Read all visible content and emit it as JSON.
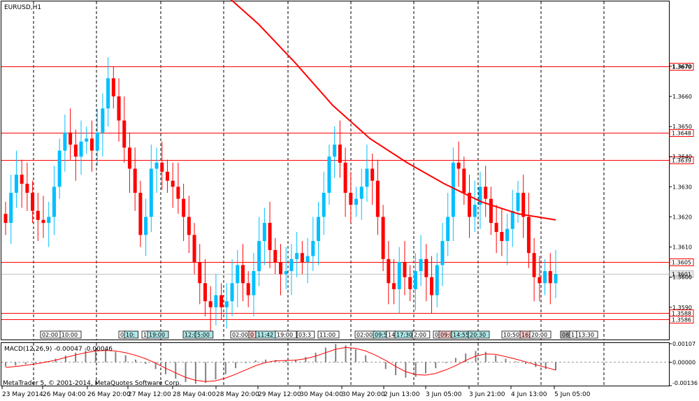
{
  "chart_data": [
    {
      "type": "candlestick",
      "title": "EURUSD,H1",
      "ylim": [
        1.3583,
        1.3692
      ],
      "y_ticks": [
        1.359,
        1.36,
        1.361,
        1.362,
        1.363,
        1.364,
        1.365,
        1.366,
        1.367
      ],
      "x_labels": [
        "23 May 2014",
        "26 May 04:00",
        "26 May 20:00",
        "27 May 12:00",
        "28 May 04:00",
        "28 May 20:00",
        "29 May 12:00",
        "30 May 04:00",
        "30 May 20:00",
        "2 Jun 13:00",
        "3 Jun 05:00",
        "3 Jun 21:00",
        "4 Jun 13:00",
        "5 Jun 05:00"
      ],
      "up_color": "#00bfff",
      "down_color": "#ff0000",
      "candles_close": [
        1.3618,
        1.3628,
        1.3634,
        1.3631,
        1.3628,
        1.3622,
        1.3619,
        1.3618,
        1.362,
        1.363,
        1.3642,
        1.3648,
        1.3644,
        1.364,
        1.3645,
        1.3646,
        1.3642,
        1.3648,
        1.3656,
        1.3666,
        1.366,
        1.3652,
        1.3643,
        1.3636,
        1.3628,
        1.3614,
        1.362,
        1.3636,
        1.3638,
        1.3635,
        1.3632,
        1.363,
        1.3626,
        1.362,
        1.3614,
        1.3605,
        1.3598,
        1.3592,
        1.359,
        1.3594,
        1.359,
        1.3592,
        1.3598,
        1.3604,
        1.3598,
        1.3594,
        1.3602,
        1.3612,
        1.3618,
        1.3609,
        1.3605,
        1.3601,
        1.3602,
        1.3606,
        1.3608,
        1.3605,
        1.3607,
        1.3612,
        1.362,
        1.3628,
        1.364,
        1.3644,
        1.3638,
        1.3628,
        1.3624,
        1.3626,
        1.363,
        1.3636,
        1.3632,
        1.362,
        1.3606,
        1.3598,
        1.3596,
        1.3605,
        1.36,
        1.3596,
        1.3602,
        1.3606,
        1.36,
        1.3594,
        1.3604,
        1.3612,
        1.362,
        1.3638,
        1.3636,
        1.3628,
        1.362,
        1.3624,
        1.363,
        1.3626,
        1.3618,
        1.3615,
        1.3612,
        1.3616,
        1.3622,
        1.3628,
        1.362,
        1.3608,
        1.36,
        1.3598,
        1.3602,
        1.3598,
        1.3601
      ],
      "series": [
        {
          "name": "",
          "color": "#ff0000",
          "x_start_index": 40,
          "values": [
            1.3695,
            1.3684,
            1.3671,
            1.3657,
            1.3646,
            1.3638,
            1.3631,
            1.3625,
            1.3621,
            1.3619
          ]
        }
      ],
      "horizontal_levels": [
        {
          "value": 1.367,
          "label": "1.3670",
          "color": "#ff0000"
        },
        {
          "value": 1.3648,
          "label": "1.3648",
          "color": "#ff0000"
        },
        {
          "value": 1.3639,
          "label": "1.3639",
          "color": "#ff0000"
        },
        {
          "value": 1.3605,
          "label": "1.3605",
          "color": "#ff0000"
        },
        {
          "value": 1.3588,
          "label": "1.3588",
          "color": "#ff0000"
        },
        {
          "value": 1.3586,
          "label": "1.3586",
          "color": "#ff0000"
        },
        {
          "value": 1.3601,
          "label": "1.3601",
          "color": "#c0c0c0"
        }
      ],
      "time_markers": [
        {
          "text": "02:00",
          "bg": "#ffffff"
        },
        {
          "text": "10:00",
          "bg": "#ffffff"
        },
        {
          "text": "0",
          "bg": "#ffffff"
        },
        {
          "text": "10:",
          "bg": "#aee8e8"
        },
        {
          "text": "1",
          "bg": "#ffffff"
        },
        {
          "text": "19:00",
          "bg": "#aee8e8"
        },
        {
          "text": "12:00",
          "bg": "#aee8e8"
        },
        {
          "text": "5:00",
          "bg": "#aee8e8"
        },
        {
          "text": "02:00",
          "bg": "#ffffff"
        },
        {
          "text": "0",
          "bg": "#ffc8c8"
        },
        {
          "text": "11:42",
          "bg": "#aee8e8"
        },
        {
          "text": "19:00",
          "bg": "#ffffff"
        },
        {
          "text": "03:3",
          "bg": "#ffffff"
        },
        {
          "text": "11:00",
          "bg": "#ffffff"
        },
        {
          "text": "02:00",
          "bg": "#ffffff"
        },
        {
          "text": "09:5",
          "bg": "#aee8e8"
        },
        {
          "text": "14",
          "bg": "#ffffff"
        },
        {
          "text": "17:30",
          "bg": "#aee8e8"
        },
        {
          "text": "2:00",
          "bg": "#ffffff"
        },
        {
          "text": "0",
          "bg": "#ffffff"
        },
        {
          "text": "09:0",
          "bg": "#ffc8c8"
        },
        {
          "text": "14:55",
          "bg": "#aee8e8"
        },
        {
          "text": "20:30",
          "bg": "#aee8e8"
        },
        {
          "text": "10:50",
          "bg": "#ffffff"
        },
        {
          "text": "16:",
          "bg": "#ffc8c8"
        },
        {
          "text": "20:00",
          "bg": "#ffffff"
        },
        {
          "text": "08",
          "bg": "#c0c0c0"
        },
        {
          "text": "1",
          "bg": "#ffffff"
        },
        {
          "text": "13:30",
          "bg": "#ffffff"
        }
      ]
    },
    {
      "type": "histogram",
      "title": "MACD(12,26,9) -0.00047 -0.00046",
      "y_ticks": [
        "0.00107",
        "0.00000",
        "-0.00136"
      ],
      "bar_color": "#808080",
      "signal_color": "#ff0000",
      "macd": [
        -0.00025,
        -0.0002,
        -0.00012,
        -5e-05,
        5e-05,
        0.0002,
        0.00038,
        0.00055,
        0.00068,
        0.00075,
        0.00072,
        0.0006,
        0.0004,
        0.00015,
        -0.0001,
        -0.0004,
        -0.0007,
        -0.00095,
        -0.00115,
        -0.00125,
        -0.0012,
        -0.001,
        -0.0007,
        -0.00035,
        -5e-05,
        0.0001,
        0.00015,
        0.00012,
        0.0001,
        0.00015,
        0.0003,
        0.00055,
        0.00085,
        0.00105,
        0.00098,
        0.00075,
        0.0004,
        0.0,
        -0.0004,
        -0.00075,
        -0.0009,
        -0.00085,
        -0.00065,
        -0.00035,
        -5e-05,
        0.00025,
        0.0005,
        0.00065,
        0.0006,
        0.0004,
        0.0002,
        5e-05,
        -0.0001,
        -0.00028,
        -0.0004,
        -0.00047
      ],
      "signal": [
        -0.0003,
        -0.00025,
        -0.00018,
        -0.0001,
        0.0,
        0.00012,
        0.00027,
        0.00042,
        0.00055,
        0.00065,
        0.00068,
        0.00065,
        0.00055,
        0.0004,
        0.0002,
        -5e-05,
        -0.00035,
        -0.00062,
        -0.00088,
        -0.00105,
        -0.00112,
        -0.00108,
        -0.00092,
        -0.0007,
        -0.00045,
        -0.0002,
        -2e-05,
        8e-05,
        0.0001,
        0.00012,
        0.0002,
        0.00035,
        0.00055,
        0.00075,
        0.00085,
        0.0008,
        0.00065,
        0.0004,
        0.0001,
        -0.00025,
        -0.00055,
        -0.00072,
        -0.00075,
        -0.00065,
        -0.00045,
        -0.0002,
        0.0001,
        0.00035,
        0.00048,
        0.00045,
        0.00032,
        0.00018,
        2e-05,
        -0.00015,
        -0.0003,
        -0.00046
      ]
    }
  ],
  "footer": {
    "copyright": "MetaTrader 5, © 2001-2014, MetaQuotes Software Corp."
  }
}
